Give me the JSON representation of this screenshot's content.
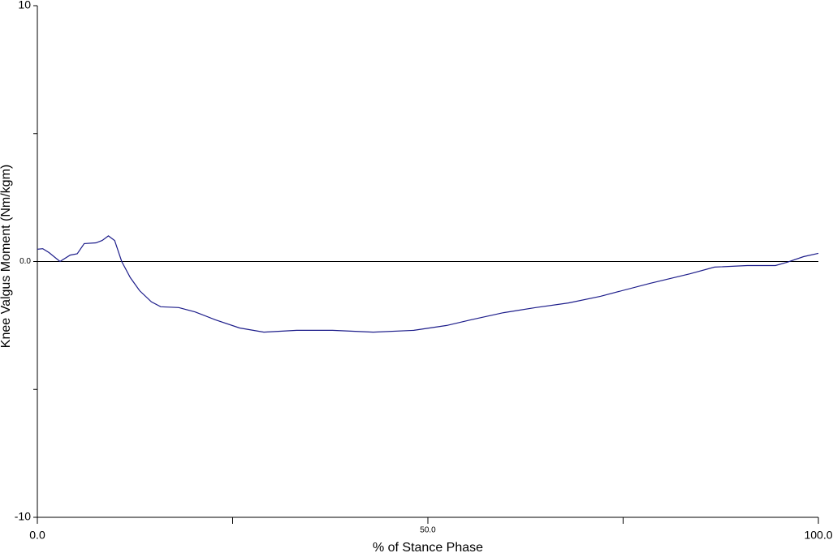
{
  "chart_data": {
    "type": "line",
    "xlabel": "% of Stance Phase",
    "ylabel": "Knee Valgus Moment (Nm/kgm)",
    "x": [
      0,
      0.7,
      1.5,
      2.9,
      4.2,
      5.1,
      6,
      7.5,
      8.3,
      9.1,
      9.9,
      10.8,
      11.9,
      13.1,
      14.6,
      15.8,
      18.1,
      20.2,
      22.8,
      25.9,
      29,
      33.2,
      37.8,
      43,
      48.2,
      52.4,
      55.5,
      59.7,
      63.8,
      68,
      72.1,
      78.4,
      83.6,
      86.7,
      90.9,
      94.5,
      96,
      98.1,
      100
    ],
    "series": [
      {
        "color": "#1c1c8a",
        "values": [
          0.48,
          0.5,
          0.35,
          0,
          0.25,
          0.3,
          0.7,
          0.73,
          0.82,
          1.0,
          0.82,
          0,
          -0.63,
          -1.14,
          -1.58,
          -1.77,
          -1.8,
          -1.97,
          -2.28,
          -2.6,
          -2.76,
          -2.69,
          -2.69,
          -2.76,
          -2.69,
          -2.5,
          -2.28,
          -2.0,
          -1.8,
          -1.62,
          -1.36,
          -0.86,
          -0.48,
          -0.22,
          -0.16,
          -0.16,
          -0.03,
          0.19,
          0.32
        ]
      }
    ],
    "xlim": [
      0,
      100
    ],
    "ylim": [
      -10,
      10
    ],
    "xticks": [
      {
        "value": 0,
        "label": "0.0"
      },
      {
        "value": 25,
        "label": null
      },
      {
        "value": 50,
        "label": "50.0"
      },
      {
        "value": 75,
        "label": null
      },
      {
        "value": 100,
        "label": "100.0"
      }
    ],
    "yticks": [
      {
        "value": -10,
        "label": "-10"
      },
      {
        "value": -5,
        "label": null
      },
      {
        "value": 0,
        "label": "0.0"
      },
      {
        "value": 5,
        "label": null
      },
      {
        "value": 10,
        "label": "10"
      }
    ],
    "zero_line": true,
    "grid": false
  }
}
